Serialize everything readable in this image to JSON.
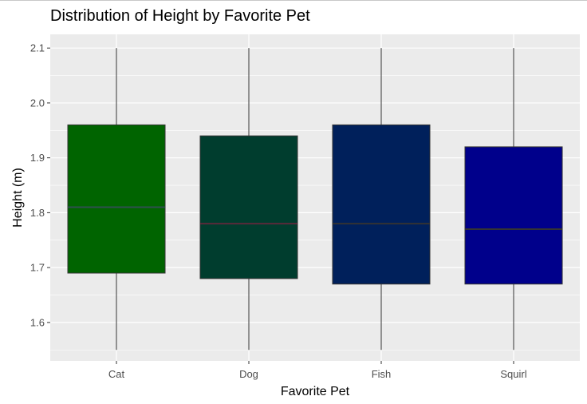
{
  "chart_data": {
    "type": "boxplot",
    "title": "Distribution of Height by Favorite Pet",
    "xlabel": "Favorite Pet",
    "ylabel": "Height (m)",
    "ylim": [
      1.53,
      2.125
    ],
    "yticks": [
      "1.6",
      "1.7",
      "1.8",
      "1.9",
      "2.0",
      "2.1"
    ],
    "grid": true,
    "legend": "none",
    "categories": [
      "Cat",
      "Dog",
      "Fish",
      "Squirl"
    ],
    "boxes": [
      {
        "category": "Cat",
        "whisker_low": 1.55,
        "q1": 1.69,
        "median": 1.81,
        "q3": 1.96,
        "whisker_high": 2.1,
        "fill": "#006400",
        "median_color": "#2f4f4f"
      },
      {
        "category": "Dog",
        "whisker_low": 1.55,
        "q1": 1.68,
        "median": 1.78,
        "q3": 1.94,
        "whisker_high": 2.1,
        "fill": "#003d2e",
        "median_color": "#5a2a3a"
      },
      {
        "category": "Fish",
        "whisker_low": 1.55,
        "q1": 1.67,
        "median": 1.78,
        "q3": 1.96,
        "whisker_high": 2.1,
        "fill": "#00205b",
        "median_color": "#333333"
      },
      {
        "category": "Squirl",
        "whisker_low": 1.55,
        "q1": 1.67,
        "median": 1.77,
        "q3": 1.92,
        "whisker_high": 2.1,
        "fill": "#00008b",
        "median_color": "#333333"
      }
    ]
  }
}
